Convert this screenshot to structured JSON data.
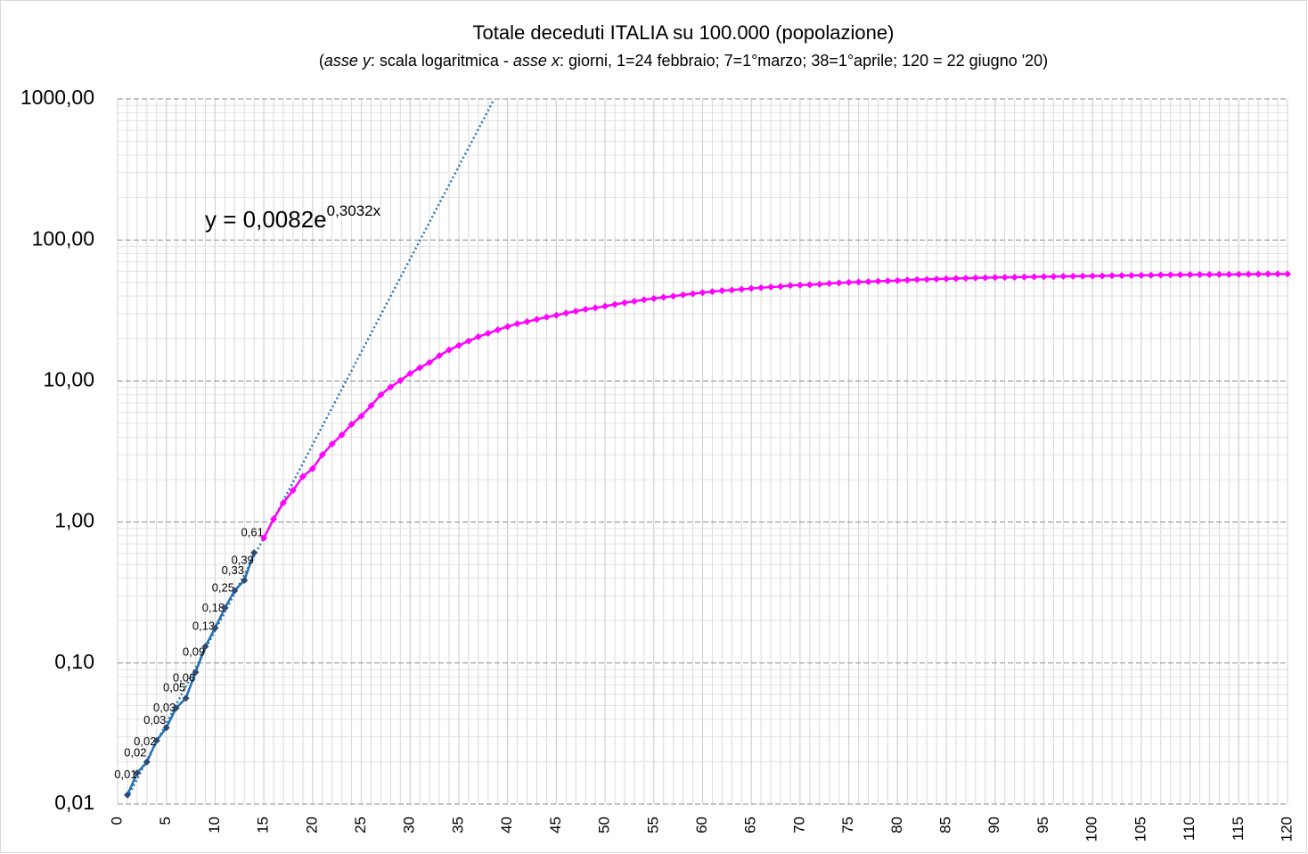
{
  "chart_data": {
    "type": "line",
    "title": "Totale deceduti ITALIA su 100.000 (popolazione)",
    "subtitle": [
      {
        "text": "("
      },
      {
        "text": "asse y",
        "italic": true
      },
      {
        "text": ": scala logaritmica - "
      },
      {
        "text": "asse x",
        "italic": true
      },
      {
        "text": ":  giorni, 1=24 febbraio; 7=1°marzo;  38=1°aprile; 120 = 22 giugno '20)"
      }
    ],
    "log_scale_y": true,
    "grid": true,
    "minor_grid": true,
    "x_minor_step": 1,
    "xlim": [
      0,
      120
    ],
    "xticks": [
      0,
      5,
      10,
      15,
      20,
      25,
      30,
      35,
      40,
      45,
      50,
      55,
      60,
      65,
      70,
      75,
      80,
      85,
      90,
      95,
      100,
      105,
      110,
      115,
      120
    ],
    "ylim": [
      0.01,
      1000
    ],
    "yticks": [
      {
        "value": 0.01,
        "label": "0,01"
      },
      {
        "value": 0.1,
        "label": "0,10"
      },
      {
        "value": 1,
        "label": "1,00"
      },
      {
        "value": 10,
        "label": "10,00"
      },
      {
        "value": 100,
        "label": "100,00"
      },
      {
        "value": 1000,
        "label": "1000,00"
      }
    ],
    "series": [
      {
        "color": "#1f6fb5",
        "marker_color": "#2f4a6e",
        "x": [
          1,
          2,
          3,
          4,
          5,
          6,
          7,
          8,
          9,
          10,
          11,
          12,
          13,
          14
        ],
        "values": [
          0.0116,
          0.0166,
          0.0199,
          0.0282,
          0.0348,
          0.048,
          0.0563,
          0.0861,
          0.1309,
          0.1773,
          0.2452,
          0.3264,
          0.386,
          0.6064
        ],
        "value_labels": [
          "0,01",
          "0,02",
          "0,02",
          "0,03",
          "0,03",
          "0,05",
          "0,06",
          "0,09",
          "0,13",
          "0,18",
          "0,25",
          "0,33",
          "0,39",
          "0,61"
        ]
      },
      {
        "color": "#ff00ff",
        "marker_color": "#ff00ff",
        "x": [
          15,
          16,
          17,
          18,
          19,
          20,
          21,
          22,
          23,
          24,
          25,
          26,
          27,
          28,
          29,
          30,
          31,
          32,
          33,
          34,
          35,
          36,
          37,
          38,
          39,
          40,
          41,
          42,
          43,
          44,
          45,
          46,
          47,
          48,
          49,
          50,
          51,
          52,
          53,
          54,
          55,
          56,
          57,
          58,
          59,
          60,
          61,
          62,
          63,
          64,
          65,
          66,
          67,
          68,
          69,
          70,
          71,
          72,
          73,
          74,
          75,
          76,
          77,
          78,
          79,
          80,
          81,
          82,
          83,
          84,
          85,
          86,
          87,
          88,
          89,
          90,
          91,
          92,
          93,
          94,
          95,
          96,
          97,
          98,
          99,
          100,
          101,
          102,
          103,
          104,
          105,
          106,
          107,
          108,
          109,
          110,
          111,
          112,
          113,
          114,
          115,
          116,
          117,
          118,
          119,
          120
        ],
        "values": [
          0.77,
          1.05,
          1.37,
          1.68,
          2.1,
          2.39,
          3.0,
          3.58,
          4.15,
          4.93,
          5.64,
          6.68,
          7.99,
          9.07,
          10.07,
          11.3,
          12.43,
          13.53,
          15.13,
          16.6,
          17.86,
          19.2,
          20.59,
          21.79,
          23.05,
          24.32,
          25.45,
          26.32,
          27.37,
          28.37,
          29.27,
          30.28,
          31.23,
          32.25,
          32.97,
          33.9,
          34.9,
          35.86,
          36.73,
          37.68,
          38.48,
          39.2,
          39.95,
          40.84,
          41.56,
          42.33,
          43.02,
          43.71,
          44.14,
          44.69,
          45.33,
          45.86,
          46.33,
          46.78,
          47.56,
          47.85,
          48.18,
          48.57,
          49.18,
          49.63,
          50.03,
          50.36,
          50.63,
          50.93,
          51.21,
          51.53,
          51.97,
          52.37,
          52.62,
          52.86,
          53.03,
          53.3,
          53.56,
          53.82,
          54.04,
          54.23,
          54.32,
          54.47,
          54.6,
          54.79,
          54.91,
          55.05,
          55.24,
          55.36,
          55.46,
          55.55,
          55.67,
          55.81,
          55.96,
          56.07,
          56.16,
          56.27,
          56.4,
          56.52,
          56.61,
          56.7,
          56.83,
          56.9,
          56.94,
          57.0,
          57.07,
          57.18,
          57.26,
          57.34,
          57.38,
          57.42
        ]
      }
    ],
    "trendline": {
      "a": 0.0082,
      "b": 0.3032,
      "x_range": [
        1,
        40
      ],
      "color": "#2e75b6",
      "equation": "y = 0,0082e",
      "exponent": "0,3032x"
    }
  }
}
